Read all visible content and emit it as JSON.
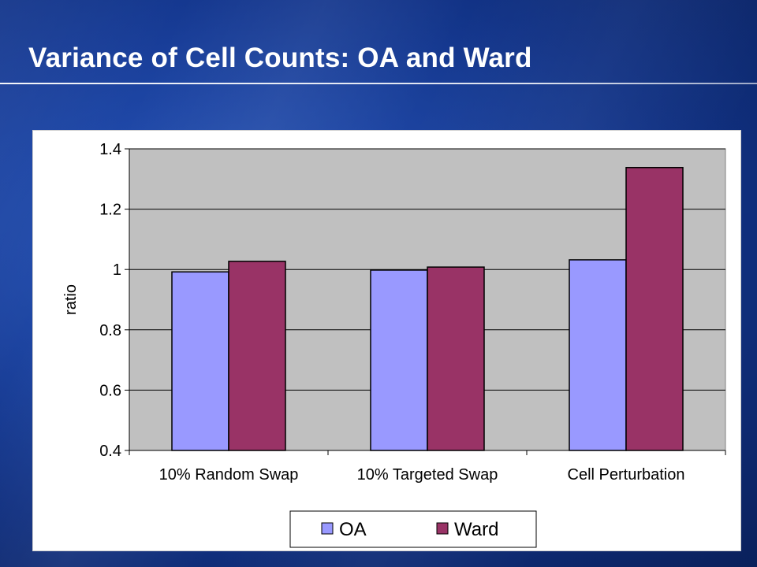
{
  "slide": {
    "title": "Variance of Cell Counts: OA and Ward"
  },
  "chart_data": {
    "type": "bar",
    "title": "",
    "xlabel": "",
    "ylabel": "ratio",
    "ylim": [
      0.4,
      1.4
    ],
    "yticks": [
      1.4,
      1.2,
      1,
      0.8,
      0.6,
      0.4
    ],
    "grid": true,
    "legend_position": "bottom",
    "categories": [
      "10% Random Swap",
      "10% Targeted Swap",
      "Cell Perturbation"
    ],
    "series": [
      {
        "name": "OA",
        "color": "#9999ff",
        "values": [
          0.992,
          0.998,
          1.032
        ]
      },
      {
        "name": "Ward",
        "color": "#993366",
        "values": [
          1.027,
          1.008,
          1.338
        ]
      }
    ],
    "plot_background": "#c0c0c0"
  }
}
